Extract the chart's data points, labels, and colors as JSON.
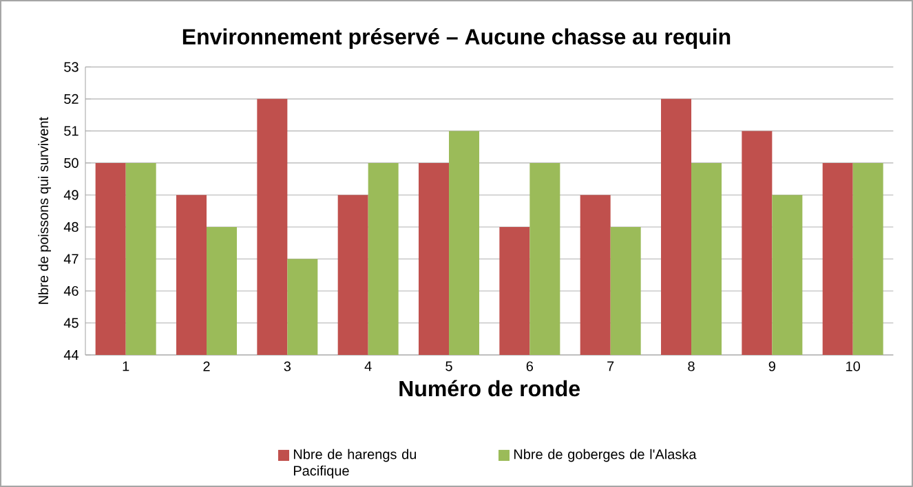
{
  "chart_data": {
    "type": "bar",
    "title": "Environnement préservé – Aucune chasse au requin",
    "xlabel": "Numéro de ronde",
    "ylabel": "Nbre de poissons qui survivent",
    "categories": [
      "1",
      "2",
      "3",
      "4",
      "5",
      "6",
      "7",
      "8",
      "9",
      "10"
    ],
    "series": [
      {
        "name": "Nbre de harengs du Pacifique",
        "color": "#c0504d",
        "values": [
          50,
          49,
          52,
          49,
          50,
          48,
          49,
          52,
          51,
          50
        ]
      },
      {
        "name": "Nbre de goberges  de l'Alaska",
        "color": "#9bbb59",
        "values": [
          50,
          48,
          47,
          50,
          51,
          50,
          48,
          50,
          49,
          50
        ]
      }
    ],
    "ylim": [
      44,
      53
    ],
    "yticks": [
      44,
      45,
      46,
      47,
      48,
      49,
      50,
      51,
      52,
      53
    ],
    "grid": "y",
    "legend": "bottom"
  }
}
